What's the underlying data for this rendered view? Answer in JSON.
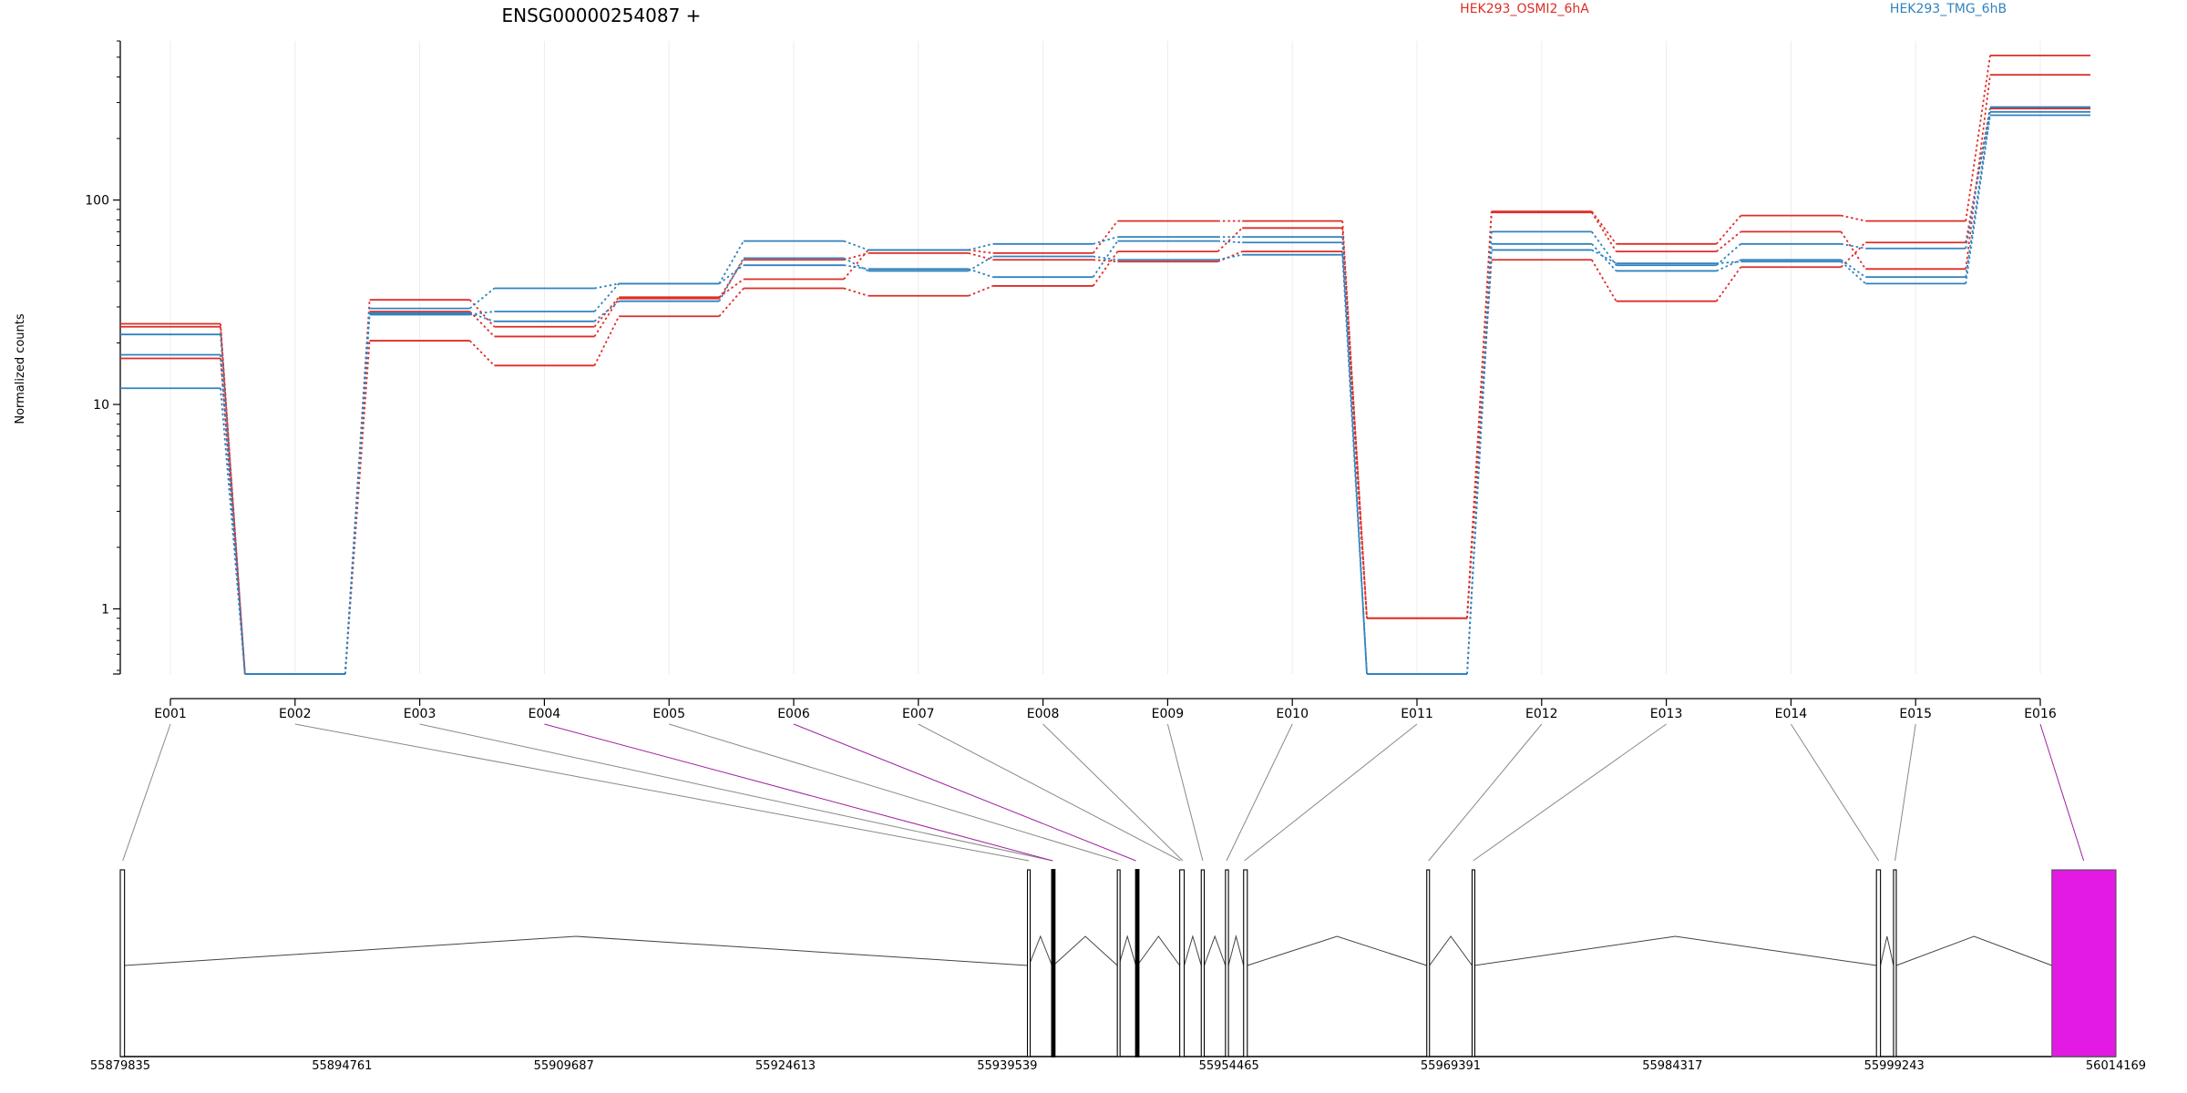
{
  "chart_data": {
    "type": "line",
    "title": "ENSG00000254087 +",
    "ylabel": "Normalized counts",
    "y_scale": "log",
    "ylim": [
      0.48,
      600
    ],
    "y_ticks": [
      {
        "value": 1,
        "label": "1"
      },
      {
        "value": 10,
        "label": "10"
      },
      {
        "value": 100,
        "label": "100"
      }
    ],
    "grid": "vertical",
    "legend_position": "top-right",
    "colors": {
      "osmi": "#de2d26",
      "tmg": "#3182bd",
      "highlight": "#e31ae3",
      "gray": "#888888",
      "highlight_line": "#a020a0"
    },
    "categories": [
      "E001",
      "E002",
      "E003",
      "E004",
      "E005",
      "E006",
      "E007",
      "E008",
      "E009",
      "E010",
      "E011",
      "E012",
      "E013",
      "E014",
      "E015",
      "E016"
    ],
    "groups": [
      {
        "label": "HEK293_OSMI2_6hA",
        "color": "#de2d26",
        "series": [
          [
            24.8,
            0.48,
            32.5,
            24.0,
            33.5,
            41.0,
            57.0,
            55.0,
            79.0,
            79.0,
            0.9,
            88.0,
            61.0,
            84.0,
            79.0,
            510
          ],
          [
            24.0,
            0.48,
            20.5,
            15.5,
            27.0,
            37.0,
            34.0,
            38.0,
            56.0,
            73.0,
            0.9,
            87.0,
            56.0,
            70.0,
            46.0,
            410
          ],
          [
            16.8,
            0.48,
            28.5,
            21.5,
            33.0,
            51.0,
            55.0,
            51.0,
            50.0,
            56.0,
            0.9,
            51.0,
            32.0,
            47.0,
            62.0,
            280
          ]
        ]
      },
      {
        "label": "HEK293_TMG_6hB",
        "color": "#3182bd",
        "series": [
          [
            12.0,
            0.48,
            27.5,
            28.5,
            39.0,
            63.0,
            57.0,
            61.0,
            66.0,
            66.0,
            0.48,
            70.0,
            48.0,
            61.0,
            58.0,
            285
          ],
          [
            17.5,
            0.48,
            29.5,
            37.0,
            39.0,
            48.0,
            46.0,
            42.0,
            63.0,
            62.0,
            0.48,
            61.0,
            45.0,
            51.0,
            42.0,
            270
          ],
          [
            22.0,
            0.48,
            28.0,
            25.5,
            32.0,
            52.0,
            45.0,
            53.0,
            51.0,
            54.0,
            0.48,
            57.0,
            49.0,
            50.0,
            39.0,
            260
          ]
        ]
      }
    ],
    "gene_model": {
      "coordinate_ticks": [
        "55879835",
        "55894761",
        "55909687",
        "55924613",
        "55939539",
        "55954465",
        "55969391",
        "55984317",
        "55999243",
        "56014169"
      ],
      "coord_min": 55879835,
      "coord_max": 56014169,
      "exons": [
        {
          "start": 55879835,
          "end": 55880120,
          "highlight": false
        },
        {
          "start": 55940900,
          "end": 55941000,
          "highlight": false
        },
        {
          "start": 55942550,
          "end": 55942640,
          "highlight": true
        },
        {
          "start": 55946950,
          "end": 55947050,
          "highlight": false
        },
        {
          "start": 55948200,
          "end": 55948290,
          "highlight": true
        },
        {
          "start": 55951150,
          "end": 55951450,
          "highlight": false
        },
        {
          "start": 55952600,
          "end": 55952800,
          "highlight": false
        },
        {
          "start": 55954230,
          "end": 55954430,
          "highlight": false
        },
        {
          "start": 55955450,
          "end": 55955700,
          "highlight": false
        },
        {
          "start": 55967780,
          "end": 55967960,
          "highlight": false
        },
        {
          "start": 55970830,
          "end": 55970980,
          "highlight": false
        },
        {
          "start": 55998050,
          "end": 55998320,
          "highlight": false
        },
        {
          "start": 55999200,
          "end": 55999380,
          "highlight": false
        },
        {
          "start": 56009860,
          "end": 56014169,
          "highlight": true
        }
      ],
      "exon_links": [
        {
          "to": 55880000,
          "highlight": false
        },
        {
          "to": 55941000,
          "highlight": false
        },
        {
          "to": 55942600,
          "highlight": false
        },
        {
          "to": 55942600,
          "highlight": true
        },
        {
          "to": 55947000,
          "highlight": false
        },
        {
          "to": 55948200,
          "highlight": true
        },
        {
          "to": 55951200,
          "highlight": false
        },
        {
          "to": 55951350,
          "highlight": false
        },
        {
          "to": 55952700,
          "highlight": false
        },
        {
          "to": 55954300,
          "highlight": false
        },
        {
          "to": 55955500,
          "highlight": false
        },
        {
          "to": 55967900,
          "highlight": false
        },
        {
          "to": 55970900,
          "highlight": false
        },
        {
          "to": 55998200,
          "highlight": false
        },
        {
          "to": 55999300,
          "highlight": false
        },
        {
          "to": 56012000,
          "highlight": true
        }
      ]
    }
  }
}
